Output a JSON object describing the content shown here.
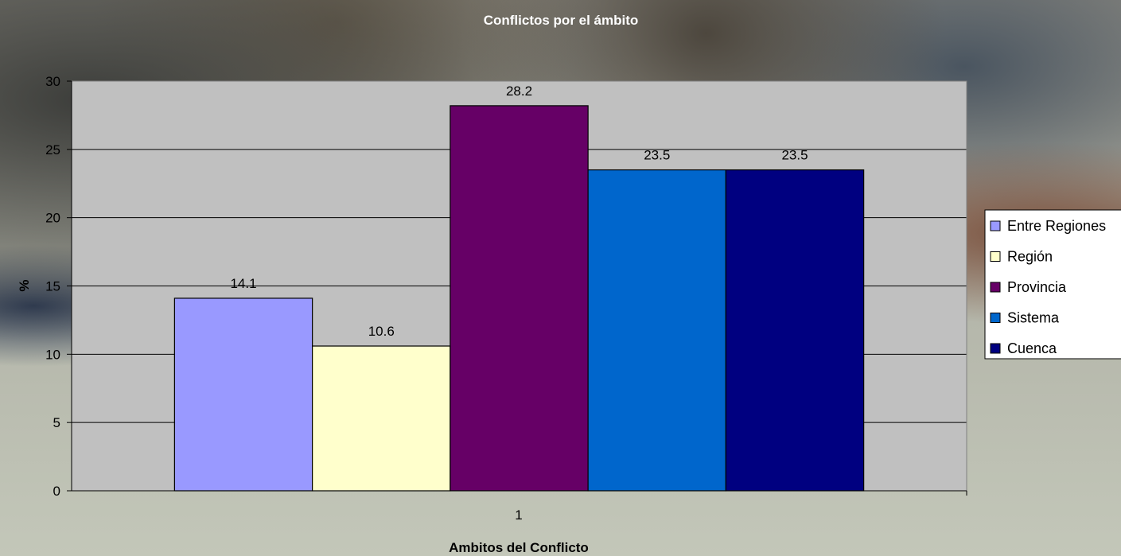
{
  "chart_data": {
    "type": "bar",
    "title": "Conflictos por el ámbito",
    "xlabel": "Ambitos del Conflicto",
    "ylabel": "%",
    "categories": [
      "1"
    ],
    "series": [
      {
        "name": "Entre Regiones",
        "values": [
          14.1
        ],
        "color": "#9999ff",
        "label": "14.1"
      },
      {
        "name": "Región",
        "values": [
          10.6
        ],
        "color": "#ffffcc",
        "label": "10.6"
      },
      {
        "name": "Provincia",
        "values": [
          28.2
        ],
        "color": "#660066",
        "label": "28.2"
      },
      {
        "name": "Sistema",
        "values": [
          23.5
        ],
        "color": "#0066cc",
        "label": "23.5"
      },
      {
        "name": "Cuenca",
        "values": [
          23.5
        ],
        "color": "#000080",
        "label": "23.5"
      }
    ],
    "ylim": [
      0,
      30
    ],
    "yticks": [
      "0",
      "5",
      "10",
      "15",
      "20",
      "25",
      "30"
    ],
    "grid": true,
    "legend": "right",
    "plot_background": "#c0c0c0"
  }
}
